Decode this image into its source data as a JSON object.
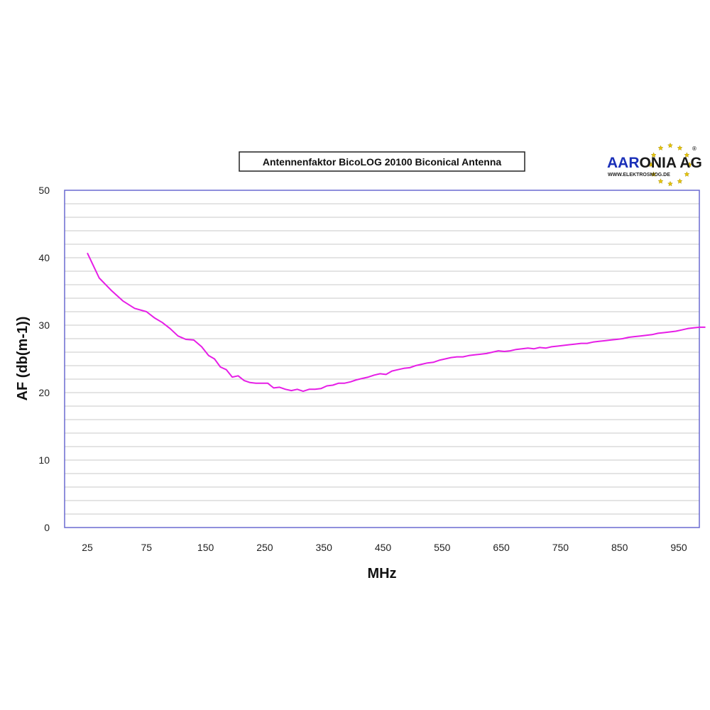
{
  "chart_data": {
    "type": "line",
    "title": "Antennenfaktor BicoLOG 20100 Biconical Antenna",
    "xlabel": "MHz",
    "ylabel": "AF (db(m-1))",
    "x_ticks": [
      "25",
      "75",
      "150",
      "250",
      "350",
      "450",
      "550",
      "650",
      "750",
      "850",
      "950"
    ],
    "ylim": [
      0,
      50
    ],
    "y_ticks": [
      0,
      10,
      20,
      30,
      40,
      50
    ],
    "grid": true,
    "line_color": "#e61ee6",
    "plot_border_color": "#6a6ad0",
    "series": [
      {
        "x": [
          25,
          35,
          45,
          55,
          65,
          75,
          85,
          95,
          105,
          115,
          125,
          135,
          145,
          155,
          165,
          175,
          185,
          195,
          205,
          215,
          225,
          235,
          245,
          255,
          265,
          275,
          285,
          295,
          305,
          315,
          325,
          335,
          345,
          355,
          365,
          375,
          385,
          395,
          405,
          415,
          425,
          435,
          445,
          455,
          465,
          475,
          485,
          495,
          505,
          515,
          525,
          535,
          545,
          555,
          565,
          575,
          585,
          595,
          605,
          615,
          625,
          635,
          645,
          655,
          665,
          675,
          685,
          695,
          705,
          715,
          725,
          735,
          745,
          755,
          765,
          775,
          785,
          795,
          805,
          815,
          825,
          835,
          845,
          855,
          865,
          875,
          885,
          895,
          905,
          915,
          925,
          935,
          945,
          955,
          965,
          975,
          985,
          995
        ],
        "values": [
          40.7,
          37.0,
          35.2,
          33.6,
          32.5,
          32.0,
          31.1,
          30.4,
          29.5,
          28.4,
          27.9,
          27.8,
          26.8,
          25.5,
          25.0,
          23.8,
          23.4,
          22.3,
          22.5,
          21.8,
          21.5,
          21.4,
          21.4,
          21.4,
          20.7,
          20.8,
          20.5,
          20.3,
          20.5,
          20.2,
          20.5,
          20.5,
          20.6,
          21.0,
          21.1,
          21.4,
          21.4,
          21.6,
          21.9,
          22.1,
          22.3,
          22.6,
          22.8,
          22.7,
          23.2,
          23.4,
          23.6,
          23.7,
          24.0,
          24.2,
          24.4,
          24.5,
          24.8,
          25.0,
          25.2,
          25.3,
          25.3,
          25.5,
          25.6,
          25.7,
          25.8,
          26.0,
          26.2,
          26.1,
          26.2,
          26.4,
          26.5,
          26.6,
          26.5,
          26.7,
          26.6,
          26.8,
          26.9,
          27.0,
          27.1,
          27.2,
          27.3,
          27.3,
          27.5,
          27.6,
          27.7,
          27.8,
          27.9,
          28.0,
          28.2,
          28.3,
          28.4,
          28.5,
          28.6,
          28.8,
          28.9,
          29.0,
          29.1,
          29.3,
          29.5,
          29.6,
          29.7,
          29.7
        ]
      }
    ]
  },
  "logo": {
    "name_part1": "AAR",
    "name_part2": "ONIA AG",
    "url": "WWW.ELEKTROSMOG.DE",
    "registered": "®",
    "color_blue": "#1a2fb8",
    "color_dark": "#1a1a1a",
    "star_color": "#e8c400"
  }
}
